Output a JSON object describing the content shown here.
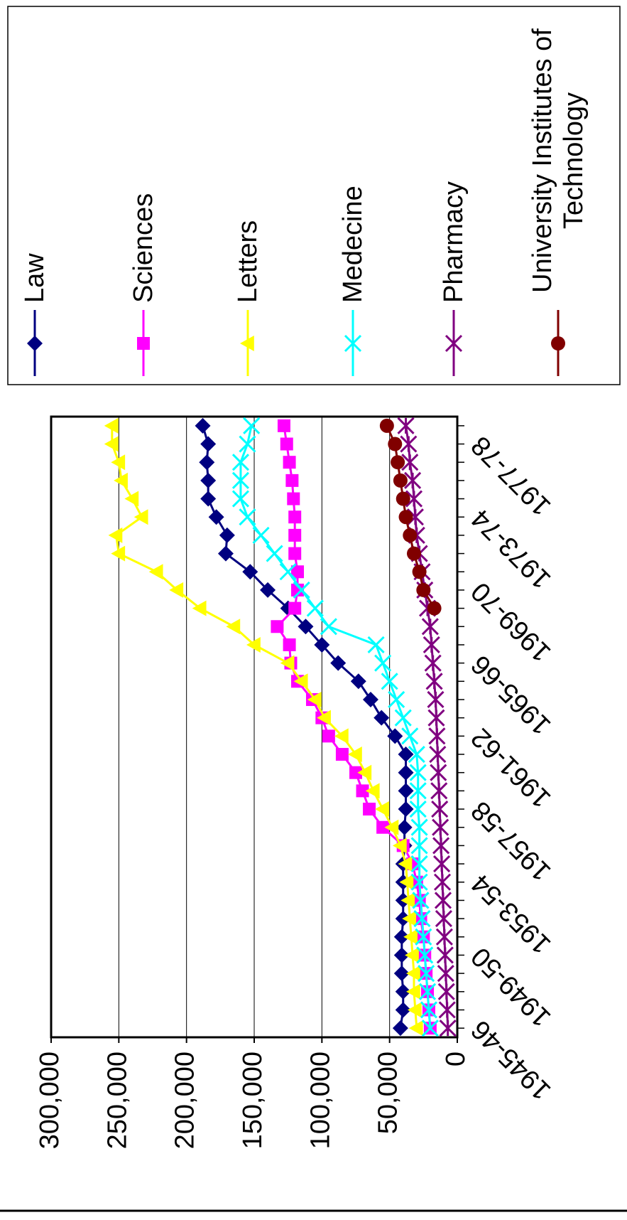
{
  "chart_data": {
    "type": "line",
    "categories": [
      "1945-46",
      null,
      null,
      null,
      "1949-50",
      null,
      null,
      null,
      "1953-54",
      null,
      null,
      null,
      "1957-58",
      null,
      null,
      null,
      "1961-62",
      null,
      null,
      null,
      "1965-66",
      null,
      null,
      null,
      "1969-70",
      null,
      null,
      null,
      "1973-74",
      null,
      null,
      null,
      "1977-78",
      null
    ],
    "series": [
      {
        "name": "Law",
        "color": "#000080",
        "marker": "diamond",
        "values": [
          42000,
          40000,
          40000,
          41000,
          41000,
          41000,
          40000,
          40000,
          40000,
          40000,
          39000,
          39000,
          38000,
          38000,
          38000,
          38000,
          46000,
          56000,
          64000,
          73000,
          88000,
          100000,
          112000,
          125000,
          140000,
          153000,
          171000,
          170000,
          178000,
          184000,
          184000,
          185000,
          184000,
          188000
        ]
      },
      {
        "name": "Sciences",
        "color": "#ff00ff",
        "marker": "square",
        "values": [
          20000,
          21000,
          22000,
          23000,
          24000,
          25000,
          27000,
          28000,
          30000,
          33000,
          40000,
          55000,
          65000,
          70000,
          75000,
          85000,
          95000,
          100000,
          107000,
          118000,
          123000,
          124000,
          133000,
          120000,
          118000,
          118000,
          120000,
          120000,
          120000,
          121000,
          122000,
          124000,
          126000,
          128000
        ]
      },
      {
        "name": "Letters",
        "color": "#ffff00",
        "marker": "triangle",
        "values": [
          30000,
          31000,
          32000,
          32000,
          33000,
          34000,
          35000,
          36000,
          37000,
          38000,
          42000,
          48000,
          55000,
          62000,
          68000,
          75000,
          85000,
          98000,
          105000,
          115000,
          125000,
          150000,
          165000,
          190000,
          207000,
          222000,
          250000,
          252000,
          233000,
          240000,
          248000,
          250000,
          255000,
          255000
        ]
      },
      {
        "name": "Medecine",
        "color": "#00ffff",
        "marker": "x",
        "values": [
          20000,
          21000,
          22000,
          23000,
          24000,
          25000,
          26000,
          27000,
          28000,
          28000,
          28000,
          28000,
          29000,
          29000,
          29000,
          30000,
          35000,
          40000,
          45000,
          50000,
          55000,
          60000,
          95000,
          105000,
          115000,
          125000,
          135000,
          145000,
          155000,
          160000,
          160000,
          160000,
          155000,
          152000
        ]
      },
      {
        "name": "Pharmacy",
        "color": "#800080",
        "marker": "asterisk",
        "values": [
          7000,
          7500,
          8000,
          8500,
          9000,
          9500,
          10000,
          10500,
          11000,
          11500,
          12000,
          12500,
          13000,
          13500,
          14000,
          14500,
          15000,
          15500,
          16000,
          17000,
          18000,
          19000,
          20000,
          22000,
          24000,
          26000,
          28000,
          30000,
          31000,
          32000,
          33000,
          35000,
          36000,
          38000
        ]
      },
      {
        "name": "University Institutes of Technology",
        "color": "#800000",
        "marker": "circle",
        "values": [
          null,
          null,
          null,
          null,
          null,
          null,
          null,
          null,
          null,
          null,
          null,
          null,
          null,
          null,
          null,
          null,
          null,
          null,
          null,
          null,
          null,
          null,
          null,
          17000,
          25000,
          28000,
          32000,
          35000,
          38000,
          40000,
          42000,
          44000,
          46000,
          52000
        ]
      }
    ],
    "ylim": [
      0,
      300000
    ],
    "yticks": [
      0,
      {
        "value": 50000,
        "label": "50,000"
      },
      {
        "value": 100000,
        "label": "100,000"
      },
      {
        "value": 150000,
        "label": "150,000"
      },
      {
        "value": 200000,
        "label": "200,000"
      },
      {
        "value": 250000,
        "label": "250,000"
      },
      {
        "value": 300000,
        "label": "300,000"
      }
    ],
    "grid": true,
    "legend": "top"
  }
}
